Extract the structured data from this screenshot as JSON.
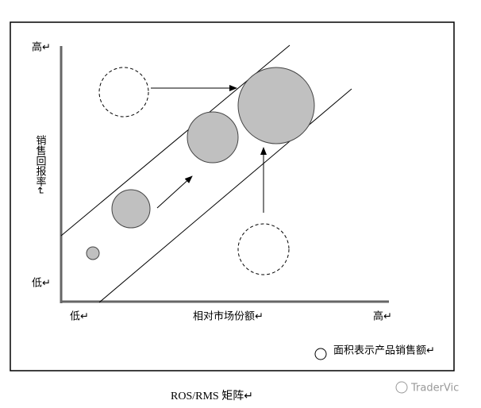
{
  "y_axis": {
    "title": "销售回报率↵",
    "high": "高↵",
    "low": "低↵"
  },
  "x_axis": {
    "title": "相对市场份额↵",
    "low": "低↵",
    "high": "高↵"
  },
  "legend": {
    "label": "面积表示产品销售额↵"
  },
  "caption": "ROS/RMS 矩阵↵",
  "watermark": "TraderVic"
}
